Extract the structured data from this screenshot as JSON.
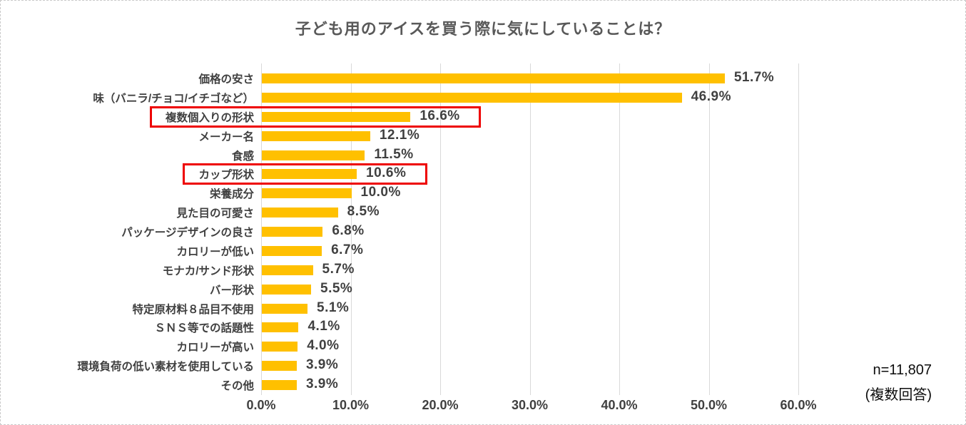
{
  "chart_data": {
    "type": "bar",
    "orientation": "horizontal",
    "title": "子ども用のアイスを買う際に気にしていることは？",
    "categories": [
      "価格の安さ",
      "味（バニラ/チョコ/イチゴなど）",
      "複数個入りの形状",
      "メーカー名",
      "食感",
      "カップ形状",
      "栄養成分",
      "見た目の可愛さ",
      "パッケージデザインの良さ",
      "カロリーが低い",
      "モナカ/サンド形状",
      "バー形状",
      "特定原材料８品目不使用",
      "ＳＮＳ等での話題性",
      "カロリーが高い",
      "環境負荷の低い素材を使用している",
      "その他"
    ],
    "values": [
      51.7,
      46.9,
      16.6,
      12.1,
      11.5,
      10.6,
      10.0,
      8.5,
      6.8,
      6.7,
      5.7,
      5.5,
      5.1,
      4.1,
      4.0,
      3.9,
      3.9
    ],
    "value_labels": [
      "51.7%",
      "46.9%",
      "16.6%",
      "12.1%",
      "11.5%",
      "10.6%",
      "10.0%",
      "8.5%",
      "6.8%",
      "6.7%",
      "5.7%",
      "5.5%",
      "5.1%",
      "4.1%",
      "4.0%",
      "3.9%",
      "3.9%"
    ],
    "x_ticks": [
      "0.0%",
      "10.0%",
      "20.0%",
      "30.0%",
      "40.0%",
      "50.0%",
      "60.0%"
    ],
    "xlim": [
      0,
      60
    ],
    "grid": "vertical",
    "legend": "none",
    "bar_color": "#FFC000",
    "gridline_color": "#D9D9D9",
    "highlight_color": "#EE0000",
    "highlighted_categories": [
      "複数個入りの形状",
      "カップ形状"
    ]
  },
  "annotation": {
    "sample_size": "n=11,807",
    "note": "(複数回答)"
  }
}
